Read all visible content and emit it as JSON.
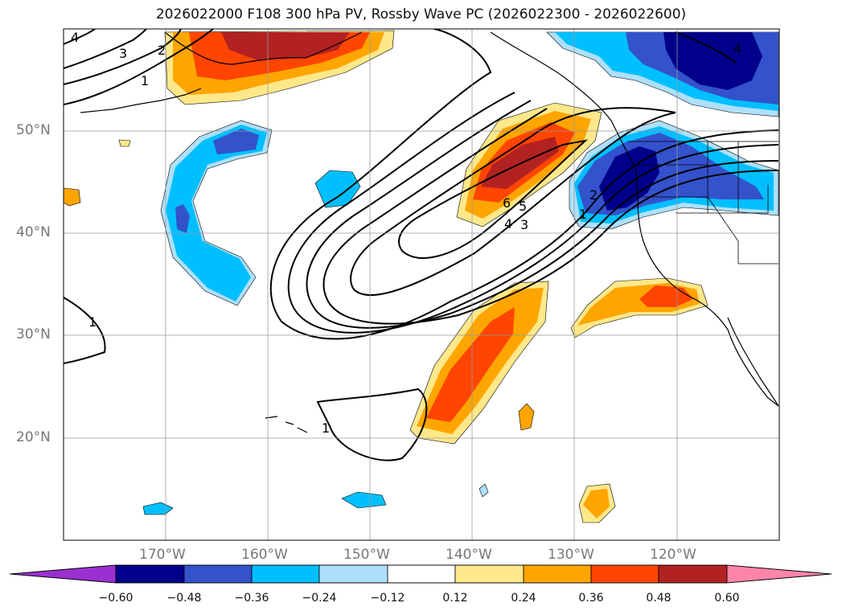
{
  "title": "2026022000 F108 300 hPa PV, Rossby Wave PC (2026022300 - 2026022600)",
  "map": {
    "lon_range": [
      -180,
      -110
    ],
    "lat_range": [
      10,
      60
    ],
    "lon_ticks": [
      "170°W",
      "160°W",
      "150°W",
      "140°W",
      "130°W",
      "120°W"
    ],
    "lat_ticks": [
      "50°N",
      "40°N",
      "30°N",
      "20°N"
    ],
    "grid": true,
    "contour_color": "#000000",
    "contour_labels": [
      "4",
      "3",
      "2",
      "1",
      "1",
      "6",
      "5",
      "4",
      "3",
      "2",
      "1",
      "1",
      "4"
    ]
  },
  "colorbar": {
    "levels": [
      "−0.60",
      "−0.48",
      "−0.36",
      "−0.24",
      "−0.12",
      "0.12",
      "0.24",
      "0.36",
      "0.48",
      "0.60"
    ],
    "colors": [
      "#9b30d0",
      "#00008b",
      "#3352cc",
      "#00bfff",
      "#aee0fb",
      "#ffffff",
      "#ffe88a",
      "#ffa500",
      "#ff4500",
      "#b22222",
      "#ff85a8"
    ],
    "extend": "both"
  },
  "colors": {
    "pos1": "#ffe88a",
    "pos2": "#ffa500",
    "pos3": "#ff4500",
    "pos4": "#b22222",
    "pos5": "#ff85a8",
    "neg1": "#aee0fb",
    "neg2": "#00bfff",
    "neg3": "#3352cc",
    "neg4": "#00008b"
  }
}
